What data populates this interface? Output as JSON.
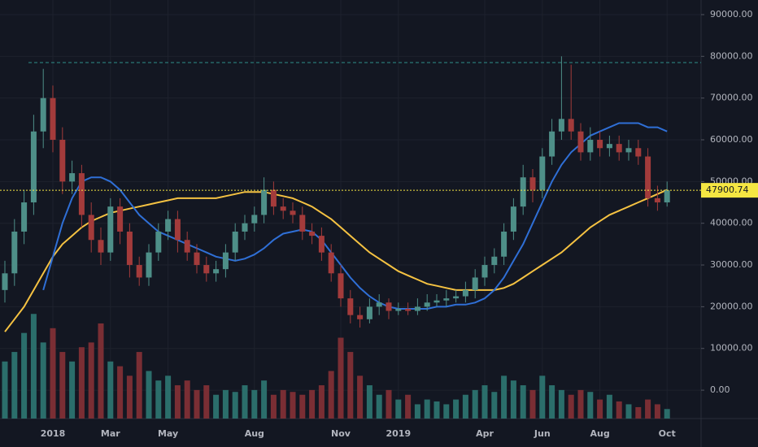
{
  "chart_data": {
    "type": "candlestick",
    "categories": [
      null,
      null,
      null,
      null,
      null,
      "2018",
      null,
      null,
      null,
      null,
      null,
      "Mar",
      null,
      null,
      null,
      null,
      null,
      "May",
      null,
      null,
      null,
      null,
      null,
      null,
      null,
      null,
      "Aug",
      null,
      null,
      null,
      null,
      null,
      null,
      null,
      null,
      "Nov",
      null,
      null,
      null,
      null,
      null,
      "2019",
      null,
      null,
      null,
      null,
      null,
      null,
      null,
      null,
      "Apr",
      null,
      null,
      null,
      null,
      null,
      "Jun",
      null,
      null,
      null,
      null,
      null,
      "Aug",
      null,
      null,
      null,
      null,
      null,
      null,
      "Oct"
    ],
    "open": [
      24000,
      28000,
      38000,
      45000,
      62000,
      70000,
      60000,
      50000,
      52000,
      42000,
      36000,
      33000,
      44000,
      38000,
      30000,
      27000,
      33000,
      38000,
      41000,
      36000,
      33000,
      30000,
      28000,
      29000,
      33000,
      38000,
      40000,
      42000,
      48000,
      44000,
      43000,
      42000,
      38000,
      37000,
      33000,
      28000,
      22000,
      18000,
      17000,
      20000,
      21000,
      19000,
      19500,
      19000,
      20000,
      21000,
      21500,
      22000,
      22500,
      24000,
      27000,
      30000,
      32000,
      38000,
      44000,
      51000,
      48000,
      56000,
      62000,
      65000,
      62000,
      57000,
      60000,
      58000,
      59000,
      57000,
      58000,
      56000,
      46000,
      45000
    ],
    "high": [
      31000,
      41000,
      48000,
      66000,
      77000,
      73000,
      63000,
      55000,
      54000,
      45000,
      39000,
      46000,
      46000,
      40000,
      32000,
      35000,
      40000,
      43000,
      43000,
      38000,
      35000,
      32000,
      31000,
      35000,
      40000,
      42000,
      44000,
      51000,
      50000,
      46000,
      45000,
      44000,
      40000,
      39000,
      35000,
      30000,
      24000,
      20000,
      22000,
      23000,
      22000,
      21000,
      21000,
      22000,
      23000,
      23000,
      24000,
      24000,
      26000,
      29000,
      32000,
      34000,
      40000,
      46000,
      54000,
      53000,
      58000,
      65000,
      80000,
      78000,
      64000,
      63000,
      62000,
      61000,
      61000,
      60000,
      60000,
      58000,
      49000,
      50000
    ],
    "low": [
      21000,
      25000,
      35000,
      42000,
      58000,
      57000,
      47000,
      47000,
      39000,
      33000,
      30000,
      31000,
      35000,
      27000,
      25000,
      25000,
      31000,
      36000,
      33000,
      31000,
      28000,
      26000,
      26000,
      27000,
      31000,
      36000,
      38000,
      40000,
      42000,
      41000,
      40000,
      36000,
      35000,
      31000,
      26000,
      20000,
      16000,
      15000,
      16000,
      18000,
      17000,
      18000,
      18000,
      18000,
      19000,
      20000,
      20000,
      21000,
      21000,
      22000,
      25000,
      28000,
      30000,
      36000,
      42000,
      45000,
      46000,
      54000,
      60000,
      60000,
      55000,
      55000,
      56000,
      56000,
      55000,
      55000,
      54000,
      44000,
      43000,
      44000
    ],
    "close": [
      28000,
      38000,
      45000,
      62000,
      70000,
      60000,
      50000,
      52000,
      42000,
      36000,
      33000,
      44000,
      38000,
      30000,
      27000,
      33000,
      38000,
      41000,
      36000,
      33000,
      30000,
      28000,
      29000,
      33000,
      38000,
      40000,
      42000,
      48000,
      44000,
      43000,
      42000,
      38000,
      37000,
      33000,
      28000,
      22000,
      18000,
      17000,
      20000,
      21000,
      19000,
      19500,
      19000,
      20000,
      21000,
      21500,
      22000,
      22500,
      24000,
      27000,
      30000,
      32000,
      38000,
      44000,
      51000,
      48000,
      56000,
      62000,
      65000,
      62000,
      57000,
      60000,
      58000,
      59000,
      57000,
      58000,
      56000,
      46000,
      45000,
      47900
    ],
    "volume": [
      60,
      70,
      90,
      110,
      80,
      95,
      70,
      60,
      75,
      80,
      100,
      60,
      55,
      45,
      70,
      50,
      40,
      45,
      35,
      40,
      30,
      35,
      25,
      30,
      28,
      35,
      30,
      40,
      25,
      30,
      28,
      25,
      30,
      35,
      50,
      85,
      70,
      45,
      35,
      25,
      30,
      20,
      25,
      15,
      20,
      18,
      15,
      20,
      25,
      30,
      35,
      28,
      45,
      40,
      35,
      30,
      45,
      35,
      30,
      25,
      30,
      28,
      20,
      25,
      18,
      15,
      12,
      20,
      15,
      10
    ],
    "vlim": [
      0,
      440
    ],
    "up_color": "#4e8f88",
    "down_color": "#a33b3b",
    "up_volume_color": "#2b6e6b",
    "down_volume_color": "#7a2e34",
    "series": [
      {
        "color": "#f5c242",
        "values": [
          14000,
          17000,
          20000,
          24000,
          28000,
          32000,
          35000,
          37000,
          39000,
          40500,
          41500,
          42500,
          43000,
          43500,
          44000,
          44500,
          45000,
          45500,
          46000,
          46000,
          46000,
          46000,
          46000,
          46500,
          47000,
          47500,
          47500,
          47500,
          47000,
          46500,
          46000,
          45000,
          44000,
          42500,
          41000,
          39000,
          37000,
          35000,
          33000,
          31500,
          30000,
          28500,
          27500,
          26500,
          25500,
          25000,
          24500,
          24000,
          24000,
          24000,
          24000,
          24000,
          24500,
          25500,
          27000,
          28500,
          30000,
          31500,
          33000,
          35000,
          37000,
          39000,
          40500,
          42000,
          43000,
          44000,
          45000,
          46000,
          47000,
          48000
        ]
      },
      {
        "color": "#2f6fd6",
        "values": [
          null,
          null,
          null,
          null,
          24000,
          32000,
          40000,
          46000,
          50000,
          51000,
          51000,
          50000,
          48000,
          45000,
          42000,
          40000,
          38000,
          37000,
          36000,
          35000,
          34000,
          33000,
          32000,
          31500,
          31000,
          31500,
          32500,
          34000,
          36000,
          37500,
          38000,
          38500,
          38000,
          36000,
          33000,
          30000,
          27000,
          24500,
          22500,
          21000,
          20000,
          19500,
          19500,
          19500,
          19500,
          20000,
          20000,
          20500,
          20500,
          21000,
          22000,
          24000,
          27000,
          31000,
          35000,
          40000,
          45000,
          50000,
          54000,
          57000,
          59000,
          61000,
          62000,
          63000,
          64000,
          64000,
          64000,
          63000,
          63000,
          62000
        ]
      }
    ],
    "ylim": [
      -6800,
      93500
    ],
    "yticks": [
      {
        "value": 0,
        "label": "0.00"
      },
      {
        "value": 10000,
        "label": "10000.00"
      },
      {
        "value": 20000,
        "label": "20000.00"
      },
      {
        "value": 30000,
        "label": "30000.00"
      },
      {
        "value": 40000,
        "label": "40000.00"
      },
      {
        "value": 50000,
        "label": "50000.00"
      },
      {
        "value": 60000,
        "label": "60000.00"
      },
      {
        "value": 70000,
        "label": "70000.00"
      },
      {
        "value": 80000,
        "label": "80000.00"
      },
      {
        "value": 90000,
        "label": "90000.00"
      }
    ],
    "reference_level": 78500,
    "last_price": 47900.74,
    "grid": true
  }
}
